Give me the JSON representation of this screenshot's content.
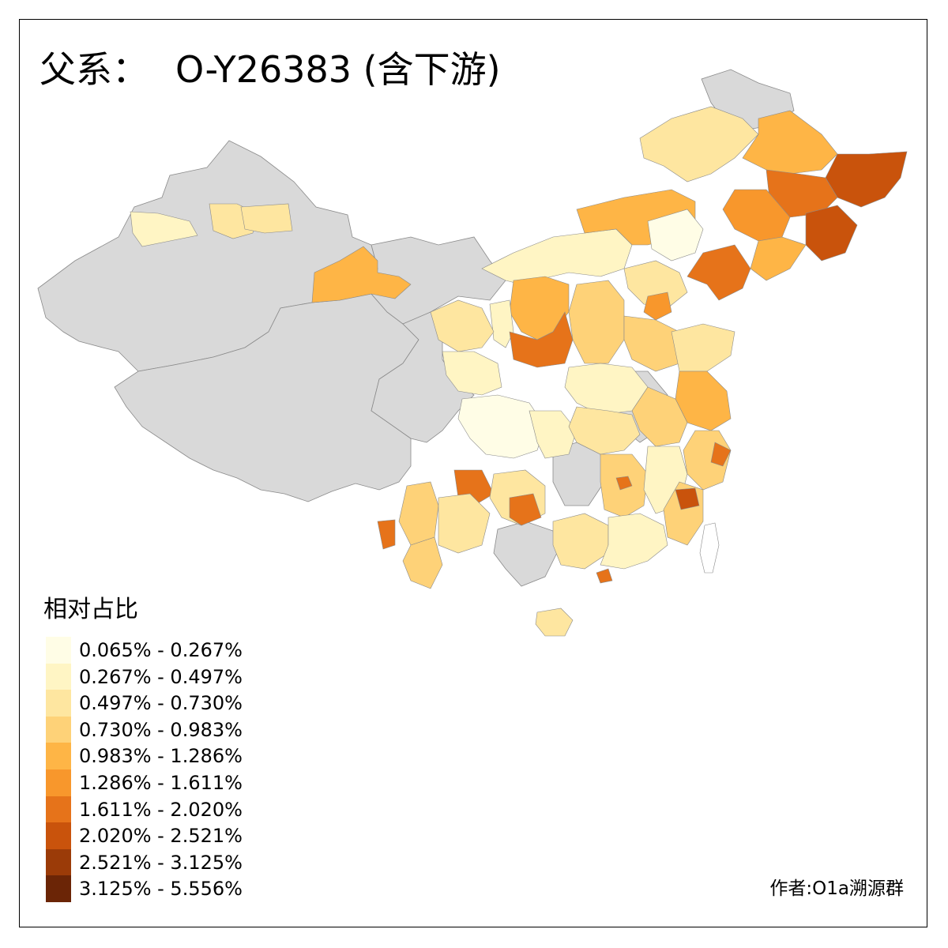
{
  "title": {
    "prefix": "父系：",
    "main": "O-Y26383 (含下游)"
  },
  "legend": {
    "title": "相对占比",
    "items": [
      {
        "label": "0.065% - 0.267%",
        "color": "#fffde6"
      },
      {
        "label": "0.267% - 0.497%",
        "color": "#fff5c4"
      },
      {
        "label": "0.497% - 0.730%",
        "color": "#fee6a0"
      },
      {
        "label": "0.730% - 0.983%",
        "color": "#fed278"
      },
      {
        "label": "0.983% - 1.286%",
        "color": "#feb546"
      },
      {
        "label": "1.286% - 1.611%",
        "color": "#f8972c"
      },
      {
        "label": "1.611% - 2.020%",
        "color": "#e6731a"
      },
      {
        "label": "2.020% - 2.521%",
        "color": "#c9530c"
      },
      {
        "label": "2.521% - 3.125%",
        "color": "#9b3b08"
      },
      {
        "label": "3.125% - 5.556%",
        "color": "#6b2506"
      }
    ]
  },
  "colors": {
    "no_data": "#d9d9d9",
    "border": "#8a8a8a"
  },
  "credit": "作者:O1a溯源群"
}
